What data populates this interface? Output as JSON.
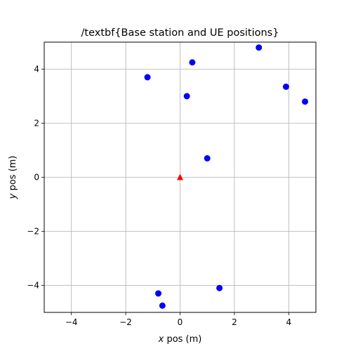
{
  "chart_data": {
    "type": "scatter",
    "title": "/textbf{Base station and UE positions}",
    "xlabel": {
      "var": "x",
      "rest": " pos (m)"
    },
    "ylabel": {
      "var": "y",
      "rest": " pos (m)"
    },
    "xlim": [
      -5,
      5
    ],
    "ylim": [
      -5,
      5
    ],
    "xticks": [
      -4,
      -2,
      0,
      2,
      4
    ],
    "yticks": [
      -4,
      -2,
      0,
      2,
      4
    ],
    "xtick_labels": [
      "−4",
      "−2",
      "0",
      "2",
      "4"
    ],
    "ytick_labels": [
      "−4",
      "−2",
      "0",
      "2",
      "4"
    ],
    "grid": true,
    "series": [
      {
        "marker": "circle",
        "color": "#0000ff",
        "points": [
          {
            "x": -1.2,
            "y": 3.7
          },
          {
            "x": 0.45,
            "y": 4.25
          },
          {
            "x": 0.25,
            "y": 3.0
          },
          {
            "x": 2.9,
            "y": 4.8
          },
          {
            "x": 3.9,
            "y": 3.35
          },
          {
            "x": 4.6,
            "y": 2.8
          },
          {
            "x": 1.0,
            "y": 0.7
          },
          {
            "x": 1.45,
            "y": -4.1
          },
          {
            "x": -0.8,
            "y": -4.3
          },
          {
            "x": -0.65,
            "y": -4.75
          }
        ]
      },
      {
        "marker": "triangle",
        "color": "#ff0000",
        "points": [
          {
            "x": 0.0,
            "y": 0.0
          }
        ]
      }
    ]
  }
}
